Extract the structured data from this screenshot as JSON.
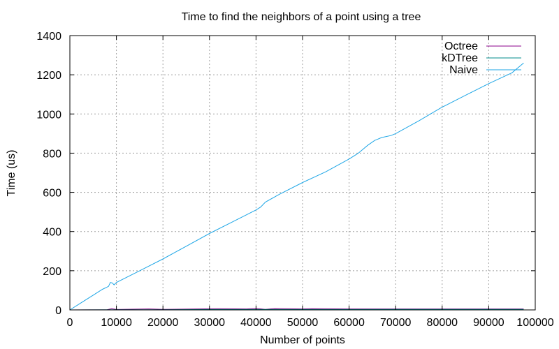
{
  "chart_data": {
    "type": "line",
    "title": "Time to find the neighbors of a point using a tree",
    "xlabel": "Number of points",
    "ylabel": "Time (us)",
    "xlim": [
      0,
      100000
    ],
    "ylim": [
      0,
      1400
    ],
    "xticks": [
      0,
      10000,
      20000,
      30000,
      40000,
      50000,
      60000,
      70000,
      80000,
      90000,
      100000
    ],
    "yticks": [
      0,
      200,
      400,
      600,
      800,
      1000,
      1200,
      1400
    ],
    "grid": true,
    "legend_position": "top-right",
    "series": [
      {
        "name": "Octree",
        "color": "#8b008b",
        "x": [
          0,
          8000,
          9000,
          10000,
          17000,
          20000,
          32000,
          38000,
          40000,
          42000,
          44000,
          50000,
          52000,
          60000,
          70000,
          80000,
          90000,
          97500
        ],
        "y": [
          0,
          1,
          6,
          2,
          5,
          3,
          6,
          5,
          8,
          3,
          7,
          5,
          6,
          5,
          5,
          5,
          5,
          5
        ]
      },
      {
        "name": "kDTree",
        "color": "#008b8b",
        "x": [
          0,
          10000,
          20000,
          30000,
          40000,
          50000,
          60000,
          70000,
          80000,
          90000,
          97500
        ],
        "y": [
          0,
          1,
          1,
          2,
          2,
          2,
          2,
          3,
          3,
          3,
          3
        ]
      },
      {
        "name": "Naive",
        "color": "#1ea6e6",
        "x": [
          0,
          2000,
          5000,
          7000,
          8300,
          8700,
          9100,
          9500,
          10000,
          15000,
          20000,
          25000,
          30000,
          35000,
          40000,
          41000,
          42000,
          45000,
          50000,
          55000,
          60000,
          62000,
          64000,
          65500,
          66000,
          67000,
          69000,
          70000,
          75000,
          80000,
          85000,
          90000,
          95000,
          97500
        ],
        "y": [
          0,
          30,
          75,
          105,
          120,
          140,
          138,
          128,
          140,
          200,
          260,
          325,
          390,
          450,
          510,
          525,
          550,
          590,
          650,
          705,
          770,
          800,
          840,
          865,
          870,
          880,
          890,
          900,
          965,
          1035,
          1095,
          1155,
          1210,
          1260
        ]
      }
    ]
  }
}
